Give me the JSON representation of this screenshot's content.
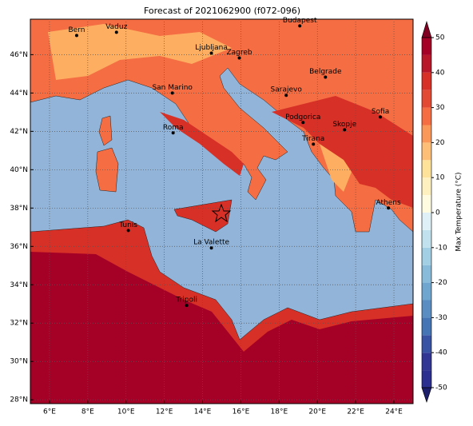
{
  "title": "Forecast of 2021062900 (f072-096)",
  "map": {
    "lonlim": [
      5,
      25
    ],
    "latlim": [
      27.8,
      47.85
    ],
    "xticks": [
      {
        "value": 6,
        "label": "6°E"
      },
      {
        "value": 8,
        "label": "8°E"
      },
      {
        "value": 10,
        "label": "10°E"
      },
      {
        "value": 12,
        "label": "12°E"
      },
      {
        "value": 14,
        "label": "14°E"
      },
      {
        "value": 16,
        "label": "16°E"
      },
      {
        "value": 18,
        "label": "18°E"
      },
      {
        "value": 20,
        "label": "20°E"
      },
      {
        "value": 22,
        "label": "22°E"
      },
      {
        "value": 24,
        "label": "24°E"
      }
    ],
    "yticks": [
      {
        "value": 28,
        "label": "28°N"
      },
      {
        "value": 30,
        "label": "30°N"
      },
      {
        "value": 32,
        "label": "32°N"
      },
      {
        "value": 34,
        "label": "34°N"
      },
      {
        "value": 36,
        "label": "36°N"
      },
      {
        "value": 38,
        "label": "38°N"
      },
      {
        "value": 40,
        "label": "40°N"
      },
      {
        "value": 42,
        "label": "42°N"
      },
      {
        "value": 44,
        "label": "44°N"
      },
      {
        "value": 46,
        "label": "46°N"
      }
    ],
    "grid": true,
    "cities": [
      {
        "name": "Bern",
        "lon": 7.42,
        "lat": 47.0
      },
      {
        "name": "Vaduz",
        "lon": 9.5,
        "lat": 47.17
      },
      {
        "name": "Budapest",
        "lon": 19.08,
        "lat": 47.5
      },
      {
        "name": "Ljubljana",
        "lon": 14.46,
        "lat": 46.08
      },
      {
        "name": "Zagreb",
        "lon": 15.92,
        "lat": 45.83
      },
      {
        "name": "Belgrade",
        "lon": 20.42,
        "lat": 44.83
      },
      {
        "name": "San Marino",
        "lon": 12.42,
        "lat": 44.0
      },
      {
        "name": "Sarajevo",
        "lon": 18.37,
        "lat": 43.88
      },
      {
        "name": "Sofia",
        "lon": 23.29,
        "lat": 42.75
      },
      {
        "name": "Podgorica",
        "lon": 19.25,
        "lat": 42.46
      },
      {
        "name": "Skopje",
        "lon": 21.42,
        "lat": 42.08
      },
      {
        "name": "Roma",
        "lon": 12.46,
        "lat": 41.92
      },
      {
        "name": "Tirana",
        "lon": 19.79,
        "lat": 41.33
      },
      {
        "name": "Athens",
        "lon": 23.71,
        "lat": 38.0
      },
      {
        "name": "Tunis",
        "lon": 10.12,
        "lat": 36.83
      },
      {
        "name": "La Valette",
        "lon": 14.46,
        "lat": 35.92
      },
      {
        "name": "Tripoli",
        "lon": 13.17,
        "lat": 32.92
      }
    ]
  },
  "colorbar": {
    "label": "Max Temperature (°C)",
    "ticks": [
      -50,
      -40,
      -30,
      -20,
      -10,
      0,
      10,
      20,
      30,
      40,
      50
    ],
    "colors": [
      "#2b2f8f",
      "#313695",
      "#3953a4",
      "#4575b4",
      "#5a8ec2",
      "#6fa6cf",
      "#88bbd9",
      "#a3cfe4",
      "#c0e1ed",
      "#dff1f6",
      "#fffbe0",
      "#fff0c0",
      "#fee29a",
      "#fdbf78",
      "#f99858",
      "#f46d43",
      "#e34a33",
      "#d73027",
      "#b8172a",
      "#a50026"
    ],
    "under": "#1c1d6b",
    "over": "#7f0020"
  }
}
